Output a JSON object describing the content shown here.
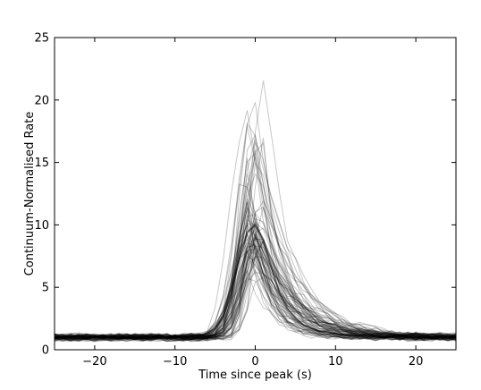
{
  "chart_data": {
    "type": "line",
    "title": "",
    "xlabel": "Time since peak (s)",
    "ylabel": "Continuum-Normalised Rate",
    "xlim": [
      -25,
      25
    ],
    "ylim": [
      0,
      25
    ],
    "xticks": [
      -20,
      -10,
      0,
      10,
      20
    ],
    "xtick_labels": [
      "−20",
      "−10",
      "0",
      "10",
      "20"
    ],
    "yticks": [
      0,
      5,
      10,
      15,
      20,
      25
    ],
    "ytick_labels": [
      "0",
      "5",
      "10",
      "15",
      "20",
      "25"
    ],
    "grid": false,
    "legend": "none",
    "line_color": "#000000",
    "line_alpha": 0.22,
    "n_series": 80,
    "peak_amplitude_range": [
      6,
      22.5
    ],
    "baseline_range": [
      0.8,
      1.5
    ],
    "x": [
      -25,
      -24,
      -23,
      -22,
      -21,
      -20,
      -19,
      -18,
      -17,
      -16,
      -15,
      -14,
      -13,
      -12,
      -11,
      -10,
      -9,
      -8,
      -7,
      -6,
      -5,
      -4,
      -3,
      -2,
      -1,
      0,
      1,
      2,
      3,
      4,
      5,
      6,
      7,
      8,
      9,
      10,
      11,
      12,
      13,
      14,
      15,
      16,
      17,
      18,
      19,
      20,
      21,
      22,
      23,
      24,
      25
    ],
    "summary_series": [
      {
        "values": [
          1,
          1,
          1,
          1,
          1,
          1,
          1,
          1,
          1,
          1,
          1,
          1,
          1,
          1,
          1,
          1,
          1.02,
          1.05,
          1.1,
          1.25,
          1.7,
          2.7,
          4.5,
          7.2,
          9.4,
          10,
          8.8,
          6.6,
          4.6,
          3.3,
          2.5,
          2,
          1.7,
          1.5,
          1.4,
          1.3,
          1.2,
          1.15,
          1.1,
          1.1,
          1.05,
          1.05,
          1.02,
          1.02,
          1,
          1,
          1,
          1,
          1,
          1,
          1
        ]
      }
    ]
  }
}
